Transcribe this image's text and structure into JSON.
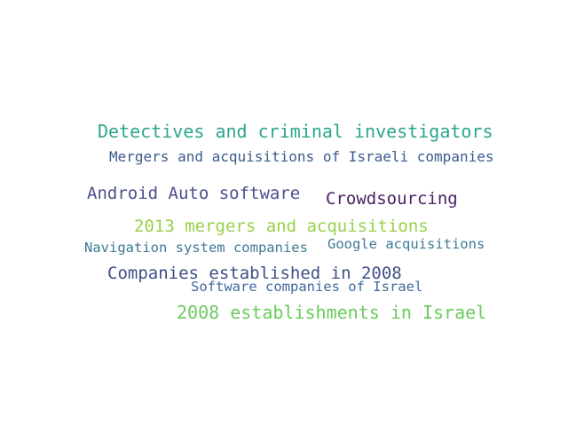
{
  "word_cloud": {
    "words": [
      {
        "text": "Detectives and criminal investigators",
        "color": "#2ca58d"
      },
      {
        "text": "Mergers and acquisitions of Israeli companies",
        "color": "#3b5b8c"
      },
      {
        "text": "Android Auto software",
        "color": "#4a4f8c"
      },
      {
        "text": "Crowdsourcing",
        "color": "#4b1f63"
      },
      {
        "text": "2013 mergers and acquisitions",
        "color": "#98d04a"
      },
      {
        "text": "Navigation system companies",
        "color": "#3d7a96"
      },
      {
        "text": "Google acquisitions",
        "color": "#3d7a96"
      },
      {
        "text": "Companies established in 2008",
        "color": "#3f4f86"
      },
      {
        "text": "Software companies of Israel",
        "color": "#3f6a9a"
      },
      {
        "text": "2008 establishments in Israel",
        "color": "#6acb5c"
      }
    ]
  }
}
